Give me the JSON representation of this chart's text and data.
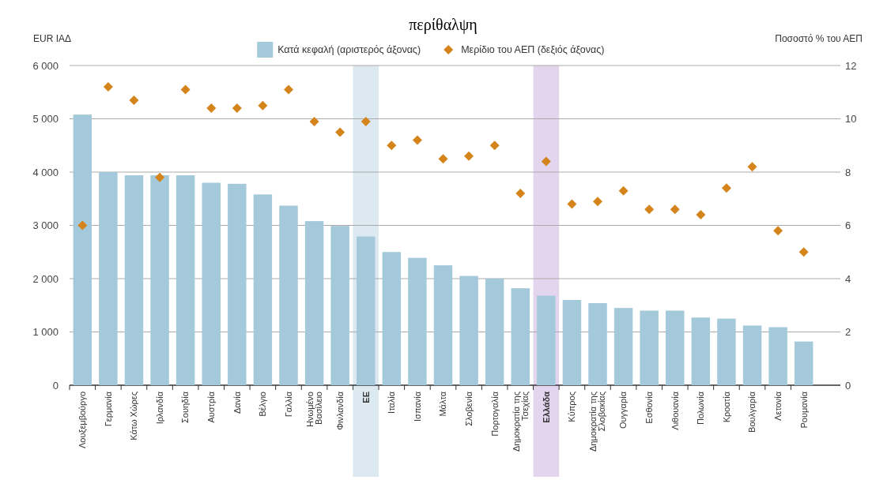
{
  "chart_data": {
    "type": "bar",
    "title": "περίθαλψη",
    "ylabel": "EUR ΙΑΔ",
    "y2label": "Ποσοστό % του ΑΕΠ",
    "categories": [
      "Λουξεμβούργο",
      "Γερμανία",
      "Κάτω Χώρες",
      "Ιρλανδία",
      "Σουηδία",
      "Αυστρία",
      "Δανία",
      "Βέλγιο",
      "Γαλλία",
      "Ηνωμένο Βασίλειο",
      "Φινλανδία",
      "ΕΕ",
      "Ιταλία",
      "Ισπανία",
      "Μάλτα",
      "Σλοβενία",
      "Πορτογαλία",
      "Δημοκρατία της Τσεχίας",
      "Ελλάδα",
      "Κύπρος",
      "Δημοκρατία της Σλοβακίας",
      "Ουγγαρία",
      "Εσθονία",
      "Λιθουανία",
      "Πολωνία",
      "Κροατία",
      "Βουλγαρία",
      "Λετονία",
      "Ρουμανία"
    ],
    "series": [
      {
        "name": "Κατά κεφαλή (αριστερός άξονας)",
        "color": "#a3c9da",
        "values": [
          5080,
          4000,
          3940,
          3940,
          3940,
          3800,
          3780,
          3580,
          3370,
          3080,
          2990,
          2790,
          2500,
          2390,
          2250,
          2050,
          2000,
          1820,
          1680,
          1600,
          1540,
          1450,
          1400,
          1400,
          1270,
          1250,
          1120,
          1090,
          820
        ]
      },
      {
        "name": "Μερίδιο του ΑΕΠ (δεξιός άξονας)",
        "type": "scatter",
        "axis": "y2",
        "color": "#d4841a",
        "marker": "diamond",
        "values": [
          6.0,
          11.2,
          10.7,
          7.8,
          11.1,
          10.4,
          10.4,
          10.5,
          11.1,
          9.9,
          9.5,
          9.9,
          9.0,
          9.2,
          8.5,
          8.6,
          9.0,
          7.2,
          8.4,
          6.8,
          6.9,
          7.3,
          6.6,
          6.6,
          6.4,
          7.4,
          8.2,
          5.8,
          5.0
        ]
      }
    ],
    "ylim": [
      0,
      6000
    ],
    "yticks": [
      {
        "value": 0,
        "label": "0"
      },
      {
        "value": 1000,
        "label": "1 000"
      },
      {
        "value": 2000,
        "label": "2 000"
      },
      {
        "value": 3000,
        "label": "3 000"
      },
      {
        "value": 4000,
        "label": "4 000"
      },
      {
        "value": 5000,
        "label": "5 000"
      },
      {
        "value": 6000,
        "label": "6 000"
      }
    ],
    "y2lim": [
      0,
      12
    ],
    "y2ticks": [
      0,
      2,
      4,
      6,
      8,
      10,
      12
    ],
    "bands": [
      {
        "axis": "x",
        "from": "ΕΕ",
        "to": "ΕΕ",
        "color": "#dce9f1"
      },
      {
        "axis": "x",
        "from": "Ελλάδα",
        "to": "Ελλάδα",
        "color": "#e3d5ee"
      }
    ],
    "grid": "y",
    "legend": "top"
  }
}
